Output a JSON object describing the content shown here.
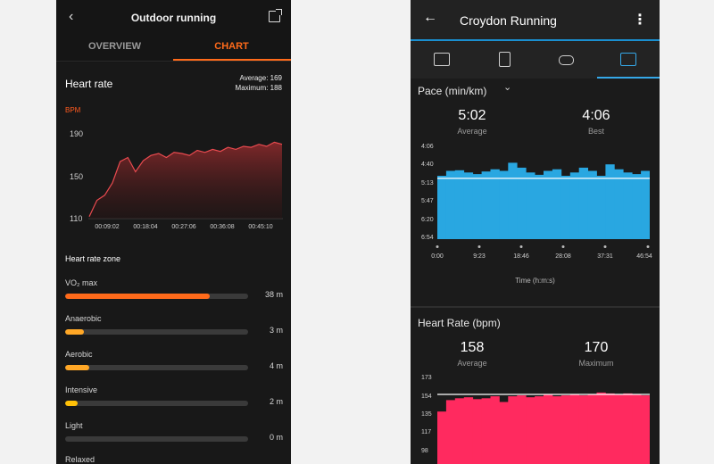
{
  "left_app": {
    "header": {
      "title": "Outdoor running"
    },
    "tabs": [
      {
        "label": "OVERVIEW"
      },
      {
        "label": "CHART"
      }
    ],
    "heart_rate": {
      "title": "Heart rate",
      "average": "Average: 169",
      "maximum": "Maximum: 188",
      "unit": "BPM"
    },
    "zone_title": "Heart rate zone",
    "zones": [
      {
        "name": "VO₂ max",
        "value": "38 m",
        "fraction": 0.79,
        "color": "#ff6a1a"
      },
      {
        "name": "Anaerobic",
        "value": "3 m",
        "fraction": 0.1,
        "color": "#ffa726"
      },
      {
        "name": "Aerobic",
        "value": "4 m",
        "fraction": 0.13,
        "color": "#ffa726"
      },
      {
        "name": "Intensive",
        "value": "2 m",
        "fraction": 0.07,
        "color": "#ffc107"
      },
      {
        "name": "Light",
        "value": "0 m",
        "fraction": 0.0,
        "color": "#ffc107"
      }
    ],
    "more_label": "Relaxed"
  },
  "right_app": {
    "header": {
      "title": "Croydon Running"
    },
    "tab_icons": [
      "summary-icon",
      "details-icon",
      "laps-icon",
      "charts-icon"
    ],
    "pace": {
      "title": "Pace (min/km)",
      "average": {
        "value": "5:02",
        "label": "Average"
      },
      "best": {
        "value": "4:06",
        "label": "Best"
      },
      "x_axis_label": "Time (h:m:s)"
    },
    "heart_rate": {
      "title": "Heart Rate (bpm)",
      "average": {
        "value": "158",
        "label": "Average"
      },
      "maximum": {
        "value": "170",
        "label": "Maximum"
      }
    },
    "accent_color": "#1a8fd0"
  },
  "chart_data": [
    {
      "type": "area",
      "ylabel": "BPM",
      "ylim": [
        110,
        195
      ],
      "y_ticks": [
        "110",
        "150",
        "190"
      ],
      "x_ticks": [
        "00:09:02",
        "00:18:04",
        "00:27:06",
        "00:36:08",
        "00:45:10"
      ],
      "x": [
        0,
        2,
        4,
        6,
        8,
        10,
        12,
        14,
        16,
        18,
        20,
        22,
        24,
        26,
        28,
        30,
        32,
        34,
        36,
        38,
        40,
        42,
        44,
        46,
        48,
        50
      ],
      "values": [
        112,
        128,
        133,
        145,
        166,
        170,
        156,
        167,
        172,
        174,
        170,
        175,
        174,
        172,
        177,
        175,
        178,
        176,
        180,
        178,
        181,
        180,
        183,
        181,
        185,
        183
      ],
      "color": "#e94a4f"
    },
    {
      "type": "area",
      "ylabel": "",
      "y_ticks": [
        "4:06",
        "4:40",
        "5:13",
        "5:47",
        "6:20",
        "6:54"
      ],
      "x_ticks": [
        "0:00",
        "9:23",
        "18:46",
        "28:08",
        "37:31",
        "46:54"
      ],
      "x": [
        0,
        2,
        4,
        6,
        8,
        10,
        12,
        14,
        16,
        18,
        20,
        22,
        24,
        26,
        28,
        30,
        32,
        34,
        36,
        38,
        40,
        42,
        44,
        46
      ],
      "values": [
        4.95,
        4.8,
        4.78,
        4.85,
        4.9,
        4.82,
        4.75,
        4.8,
        4.55,
        4.7,
        4.85,
        4.92,
        4.8,
        4.75,
        4.95,
        4.85,
        4.7,
        4.8,
        4.95,
        4.6,
        4.75,
        4.85,
        4.9,
        4.8
      ],
      "average_line": 5.03,
      "color": "#29a7e1"
    },
    {
      "type": "area",
      "ylabel": "",
      "y_ticks": [
        "173",
        "154",
        "135",
        "117",
        "98"
      ],
      "x": [
        0,
        2,
        4,
        6,
        8,
        10,
        12,
        14,
        16,
        18,
        20,
        22,
        24,
        26,
        28,
        30,
        32,
        34,
        36,
        38,
        40,
        42,
        44,
        46
      ],
      "values": [
        140,
        152,
        154,
        155,
        153,
        154,
        156,
        150,
        156,
        157,
        155,
        156,
        158,
        156,
        157,
        158,
        157,
        158,
        160,
        159,
        158,
        159,
        158,
        157
      ],
      "average_line": 158,
      "color": "#ff2a5f"
    }
  ]
}
